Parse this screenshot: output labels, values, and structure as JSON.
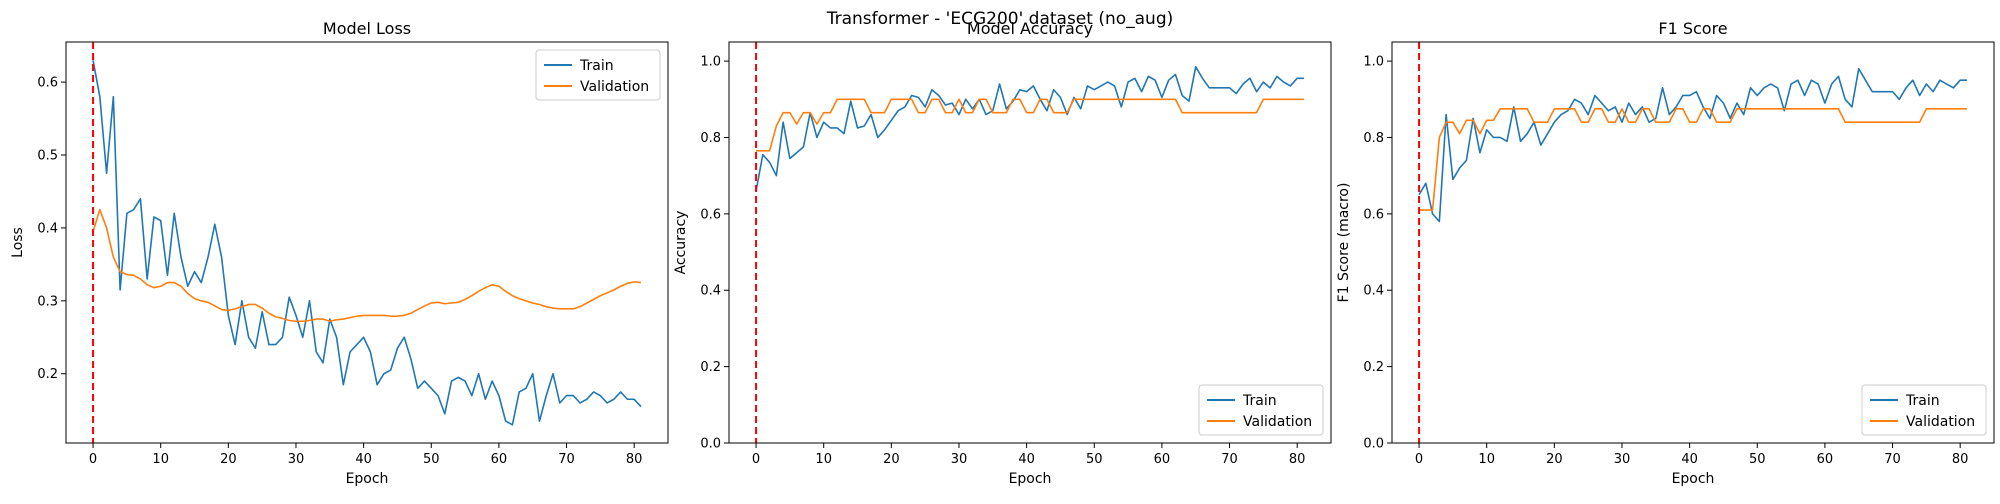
{
  "suptitle": "Transformer - 'ECG200' dataset (no_aug)",
  "colors": {
    "train": "#1f77b4",
    "validation": "#ff7f0e",
    "marker": "#ff0000"
  },
  "chart_data": [
    {
      "type": "line",
      "title": "Model Loss",
      "xlabel": "Epoch",
      "ylabel": "Loss",
      "xlim": [
        -4,
        85
      ],
      "ylim": [
        0.105,
        0.655
      ],
      "xticks": [
        0,
        10,
        20,
        30,
        40,
        50,
        60,
        70,
        80
      ],
      "yticks": [
        0.2,
        0.3,
        0.4,
        0.5,
        0.6
      ],
      "ytick_labels": [
        "0.2",
        "0.3",
        "0.4",
        "0.5",
        "0.6"
      ],
      "legend_loc": "upper-right",
      "vline_x": 0,
      "series": [
        {
          "name": "Train",
          "values": [
            0.63,
            0.58,
            0.475,
            0.58,
            0.315,
            0.42,
            0.425,
            0.44,
            0.33,
            0.415,
            0.41,
            0.335,
            0.42,
            0.36,
            0.32,
            0.34,
            0.325,
            0.36,
            0.405,
            0.36,
            0.28,
            0.24,
            0.3,
            0.25,
            0.235,
            0.285,
            0.24,
            0.24,
            0.25,
            0.305,
            0.28,
            0.25,
            0.3,
            0.23,
            0.215,
            0.275,
            0.25,
            0.185,
            0.23,
            0.24,
            0.25,
            0.23,
            0.185,
            0.2,
            0.205,
            0.235,
            0.25,
            0.22,
            0.18,
            0.19,
            0.18,
            0.17,
            0.145,
            0.19,
            0.195,
            0.19,
            0.17,
            0.2,
            0.165,
            0.19,
            0.17,
            0.135,
            0.13,
            0.175,
            0.18,
            0.2,
            0.135,
            0.17,
            0.2,
            0.16,
            0.17,
            0.17,
            0.16,
            0.165,
            0.175,
            0.17,
            0.16,
            0.165,
            0.175,
            0.165,
            0.165,
            0.155
          ]
        },
        {
          "name": "Validation",
          "values": [
            0.395,
            0.425,
            0.4,
            0.36,
            0.34,
            0.336,
            0.335,
            0.33,
            0.322,
            0.318,
            0.32,
            0.325,
            0.325,
            0.32,
            0.31,
            0.303,
            0.3,
            0.298,
            0.293,
            0.288,
            0.287,
            0.289,
            0.292,
            0.295,
            0.295,
            0.29,
            0.283,
            0.278,
            0.276,
            0.273,
            0.272,
            0.272,
            0.273,
            0.275,
            0.275,
            0.272,
            0.274,
            0.275,
            0.277,
            0.279,
            0.28,
            0.28,
            0.28,
            0.28,
            0.279,
            0.279,
            0.28,
            0.283,
            0.288,
            0.293,
            0.297,
            0.298,
            0.296,
            0.297,
            0.298,
            0.302,
            0.307,
            0.313,
            0.318,
            0.322,
            0.32,
            0.313,
            0.307,
            0.303,
            0.3,
            0.297,
            0.295,
            0.292,
            0.29,
            0.289,
            0.289,
            0.289,
            0.292,
            0.297,
            0.302,
            0.307,
            0.311,
            0.315,
            0.32,
            0.324,
            0.326,
            0.325
          ]
        }
      ]
    },
    {
      "type": "line",
      "title": "Model Accuracy",
      "xlabel": "Epoch",
      "ylabel": "Accuracy",
      "xlim": [
        -4,
        85
      ],
      "ylim": [
        0,
        1.05
      ],
      "xticks": [
        0,
        10,
        20,
        30,
        40,
        50,
        60,
        70,
        80
      ],
      "yticks": [
        0,
        0.2,
        0.4,
        0.6,
        0.8,
        1.0
      ],
      "ytick_labels": [
        "0.0",
        "0.2",
        "0.4",
        "0.6",
        "0.8",
        "1.0"
      ],
      "legend_loc": "lower-right",
      "vline_x": 0,
      "series": [
        {
          "name": "Train",
          "values": [
            0.66,
            0.755,
            0.735,
            0.7,
            0.84,
            0.745,
            0.76,
            0.775,
            0.865,
            0.8,
            0.84,
            0.825,
            0.825,
            0.81,
            0.895,
            0.825,
            0.83,
            0.86,
            0.8,
            0.82,
            0.845,
            0.87,
            0.88,
            0.91,
            0.905,
            0.88,
            0.925,
            0.91,
            0.885,
            0.89,
            0.86,
            0.9,
            0.875,
            0.9,
            0.86,
            0.87,
            0.94,
            0.875,
            0.895,
            0.925,
            0.92,
            0.935,
            0.9,
            0.87,
            0.925,
            0.905,
            0.86,
            0.905,
            0.875,
            0.935,
            0.925,
            0.935,
            0.945,
            0.935,
            0.88,
            0.945,
            0.955,
            0.92,
            0.96,
            0.95,
            0.905,
            0.95,
            0.965,
            0.91,
            0.895,
            0.985,
            0.955,
            0.93,
            0.93,
            0.93,
            0.93,
            0.915,
            0.94,
            0.955,
            0.92,
            0.945,
            0.93,
            0.96,
            0.945,
            0.935,
            0.955,
            0.955
          ]
        },
        {
          "name": "Validation",
          "values": [
            0.765,
            0.765,
            0.765,
            0.83,
            0.865,
            0.865,
            0.835,
            0.865,
            0.865,
            0.835,
            0.865,
            0.865,
            0.9,
            0.9,
            0.9,
            0.9,
            0.9,
            0.865,
            0.865,
            0.865,
            0.9,
            0.9,
            0.9,
            0.9,
            0.865,
            0.865,
            0.9,
            0.9,
            0.865,
            0.865,
            0.9,
            0.865,
            0.865,
            0.9,
            0.9,
            0.865,
            0.865,
            0.865,
            0.9,
            0.9,
            0.865,
            0.865,
            0.9,
            0.9,
            0.865,
            0.865,
            0.865,
            0.9,
            0.9,
            0.9,
            0.9,
            0.9,
            0.9,
            0.9,
            0.9,
            0.9,
            0.9,
            0.9,
            0.9,
            0.9,
            0.9,
            0.9,
            0.9,
            0.865,
            0.865,
            0.865,
            0.865,
            0.865,
            0.865,
            0.865,
            0.865,
            0.865,
            0.865,
            0.865,
            0.865,
            0.9,
            0.9,
            0.9,
            0.9,
            0.9,
            0.9,
            0.9
          ]
        }
      ]
    },
    {
      "type": "line",
      "title": "F1 Score",
      "xlabel": "Epoch",
      "ylabel": "F1 Score (macro)",
      "xlim": [
        -4,
        85
      ],
      "ylim": [
        0,
        1.05
      ],
      "xticks": [
        0,
        10,
        20,
        30,
        40,
        50,
        60,
        70,
        80
      ],
      "yticks": [
        0,
        0.2,
        0.4,
        0.6,
        0.8,
        1.0
      ],
      "ytick_labels": [
        "0.0",
        "0.2",
        "0.4",
        "0.6",
        "0.8",
        "1.0"
      ],
      "legend_loc": "lower-right",
      "vline_x": 0,
      "series": [
        {
          "name": "Train",
          "values": [
            0.65,
            0.68,
            0.6,
            0.58,
            0.86,
            0.69,
            0.72,
            0.74,
            0.85,
            0.76,
            0.82,
            0.8,
            0.8,
            0.79,
            0.88,
            0.79,
            0.81,
            0.84,
            0.78,
            0.81,
            0.84,
            0.86,
            0.87,
            0.9,
            0.89,
            0.86,
            0.91,
            0.89,
            0.87,
            0.88,
            0.84,
            0.89,
            0.86,
            0.88,
            0.84,
            0.85,
            0.93,
            0.86,
            0.88,
            0.91,
            0.91,
            0.92,
            0.88,
            0.85,
            0.91,
            0.89,
            0.85,
            0.89,
            0.86,
            0.93,
            0.91,
            0.93,
            0.94,
            0.93,
            0.87,
            0.94,
            0.95,
            0.91,
            0.95,
            0.94,
            0.89,
            0.94,
            0.96,
            0.9,
            0.88,
            0.98,
            0.95,
            0.92,
            0.92,
            0.92,
            0.92,
            0.9,
            0.93,
            0.95,
            0.91,
            0.94,
            0.92,
            0.95,
            0.94,
            0.93,
            0.95,
            0.95
          ]
        },
        {
          "name": "Validation",
          "values": [
            0.61,
            0.61,
            0.61,
            0.8,
            0.84,
            0.84,
            0.81,
            0.845,
            0.845,
            0.81,
            0.845,
            0.845,
            0.875,
            0.875,
            0.875,
            0.875,
            0.875,
            0.84,
            0.84,
            0.84,
            0.875,
            0.875,
            0.875,
            0.875,
            0.84,
            0.84,
            0.875,
            0.875,
            0.84,
            0.84,
            0.875,
            0.84,
            0.84,
            0.875,
            0.875,
            0.84,
            0.84,
            0.84,
            0.875,
            0.875,
            0.84,
            0.84,
            0.875,
            0.875,
            0.84,
            0.84,
            0.84,
            0.875,
            0.875,
            0.875,
            0.875,
            0.875,
            0.875,
            0.875,
            0.875,
            0.875,
            0.875,
            0.875,
            0.875,
            0.875,
            0.875,
            0.875,
            0.875,
            0.84,
            0.84,
            0.84,
            0.84,
            0.84,
            0.84,
            0.84,
            0.84,
            0.84,
            0.84,
            0.84,
            0.84,
            0.875,
            0.875,
            0.875,
            0.875,
            0.875,
            0.875,
            0.875
          ]
        }
      ]
    }
  ]
}
